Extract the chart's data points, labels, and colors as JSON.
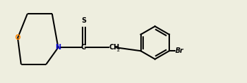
{
  "bg_color": "#eeeedf",
  "line_color": "#000000",
  "N_color": "#0000cc",
  "O_color": "#ff8800",
  "lw": 1.5,
  "figsize": [
    3.59,
    1.21
  ],
  "dpi": 100,
  "xlim": [
    0.0,
    9.5
  ],
  "ylim": [
    0.2,
    3.6
  ]
}
